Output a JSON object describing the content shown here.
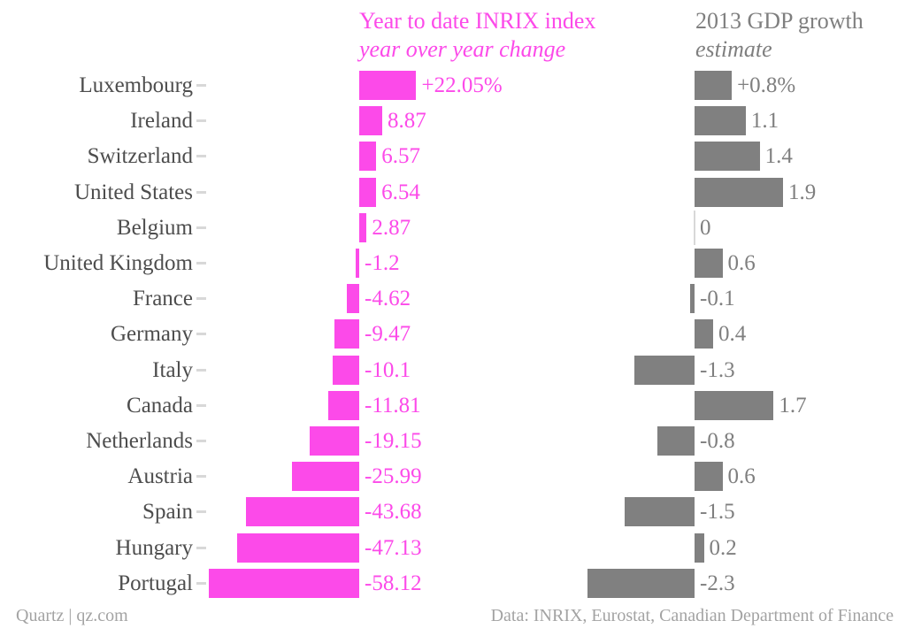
{
  "header": {
    "left_title": {
      "line1": "Year to date INRIX index",
      "line2": "year over year change"
    },
    "right_title": {
      "line1": "2013 GDP growth",
      "line2": "estimate"
    }
  },
  "footer": {
    "source_left": "Quartz | qz.com",
    "source_right": "Data: INRIX, Eurostat, Canadian Department of Finance"
  },
  "colors": {
    "magenta": "#fc4ae9",
    "gray_bar": "#808080",
    "gray_text": "#7f7f7f",
    "country_label": "#4d4d4d",
    "footer_text": "#a3a3a3",
    "tick": "#d8d8d8",
    "zero_line": "#d8d8d8"
  },
  "chart_data": {
    "type": "bar",
    "orientation": "horizontal",
    "grid": false,
    "legend_position": "top",
    "categories": [
      "Luxembourg",
      "Ireland",
      "Switzerland",
      "United States",
      "Belgium",
      "United Kingdom",
      "France",
      "Germany",
      "Italy",
      "Canada",
      "Netherlands",
      "Austria",
      "Spain",
      "Hungary",
      "Portugal"
    ],
    "series": [
      {
        "name": "Year to date INRIX index, year over year change",
        "color": "#fc4ae9",
        "axis_range": [
          -58.12,
          22.05
        ],
        "values": [
          22.05,
          8.87,
          6.57,
          6.54,
          2.87,
          -1.2,
          -4.62,
          -9.47,
          -10.1,
          -11.81,
          -19.15,
          -25.99,
          -43.68,
          -47.13,
          -58.12
        ],
        "labels": [
          "+22.05%",
          "8.87",
          "6.57",
          "6.54",
          "2.87",
          "-1.2",
          "-4.62",
          "-9.47",
          "-10.1",
          "-11.81",
          "-19.15",
          "-25.99",
          "-43.68",
          "-47.13",
          "-58.12"
        ]
      },
      {
        "name": "2013 GDP growth estimate",
        "color": "#808080",
        "axis_range": [
          -2.3,
          1.9
        ],
        "values": [
          0.8,
          1.1,
          1.4,
          1.9,
          0,
          0.6,
          -0.1,
          0.4,
          -1.3,
          1.7,
          -0.8,
          0.6,
          -1.5,
          0.2,
          -2.3
        ],
        "labels": [
          "+0.8%",
          "1.1",
          "1.4",
          "1.9",
          "0",
          "0.6",
          "-0.1",
          "0.4",
          "-1.3",
          "1.7",
          "-0.8",
          "0.6",
          "-1.5",
          "0.2",
          "-2.3"
        ]
      }
    ]
  }
}
